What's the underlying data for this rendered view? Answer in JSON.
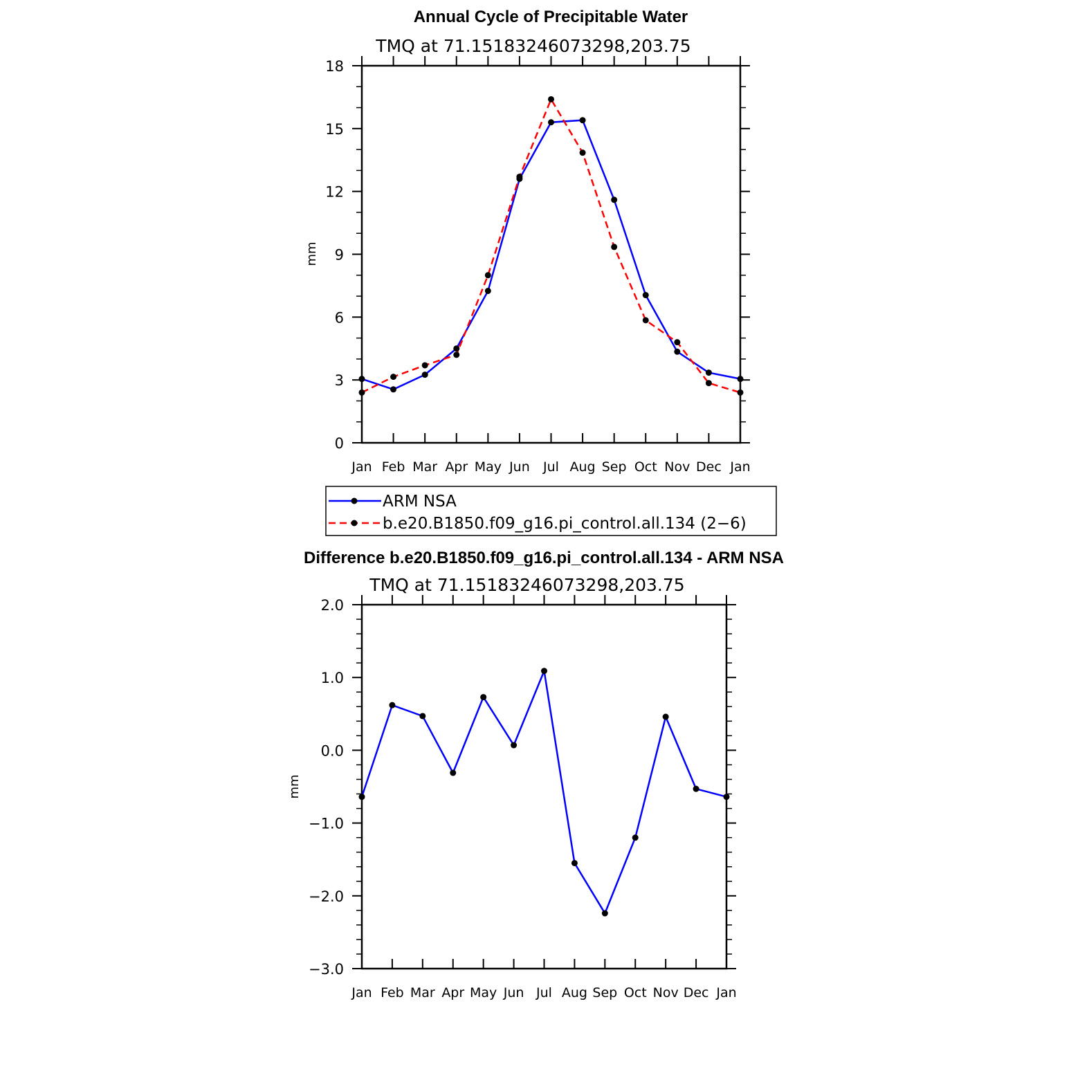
{
  "chart_data": [
    {
      "type": "line",
      "title": "Annual Cycle of Precipitable Water",
      "subtitle": "TMQ at 71.15183246073298,203.75",
      "xlabel": "",
      "ylabel": "mm",
      "categories": [
        "Jan",
        "Feb",
        "Mar",
        "Apr",
        "May",
        "Jun",
        "Jul",
        "Aug",
        "Sep",
        "Oct",
        "Nov",
        "Dec",
        "Jan"
      ],
      "ylim": [
        0,
        18
      ],
      "yticks": [
        0,
        3,
        6,
        9,
        12,
        15,
        18
      ],
      "ytick_labels": [
        "0",
        "3",
        "6",
        "9",
        "12",
        "15",
        "18"
      ],
      "series": [
        {
          "name": "ARM NSA",
          "color": "#0000ff",
          "dash": "solid",
          "values": [
            3.05,
            2.55,
            3.25,
            4.5,
            7.25,
            12.6,
            15.3,
            15.4,
            11.6,
            7.05,
            4.35,
            3.35,
            3.05
          ]
        },
        {
          "name": "b.e20.B1850.f09_g16.pi_control.all.134 (2−6)",
          "color": "#ff0000",
          "dash": "dashed",
          "values": [
            2.4,
            3.15,
            3.7,
            4.2,
            8.0,
            12.7,
            16.4,
            13.85,
            9.35,
            5.85,
            4.8,
            2.85,
            2.4
          ]
        }
      ],
      "legend": "bottom"
    },
    {
      "type": "line",
      "title": "Difference b.e20.B1850.f09_g16.pi_control.all.134 - ARM NSA",
      "subtitle": "TMQ at 71.15183246073298,203.75",
      "xlabel": "",
      "ylabel": "mm",
      "categories": [
        "Jan",
        "Feb",
        "Mar",
        "Apr",
        "May",
        "Jun",
        "Jul",
        "Aug",
        "Sep",
        "Oct",
        "Nov",
        "Dec",
        "Jan"
      ],
      "ylim": [
        -3.0,
        2.0
      ],
      "yticks": [
        -3,
        -2,
        -1,
        0,
        1,
        2
      ],
      "ytick_labels": [
        "−3.0",
        "−2.0",
        "−1.0",
        "0.0",
        "1.0",
        "2.0"
      ],
      "series": [
        {
          "color": "#0000ff",
          "dash": "solid",
          "values": [
            -0.64,
            0.62,
            0.47,
            -0.31,
            0.73,
            0.07,
            1.09,
            -1.55,
            -2.24,
            -1.2,
            0.46,
            -0.53,
            -0.64
          ]
        }
      ]
    }
  ]
}
